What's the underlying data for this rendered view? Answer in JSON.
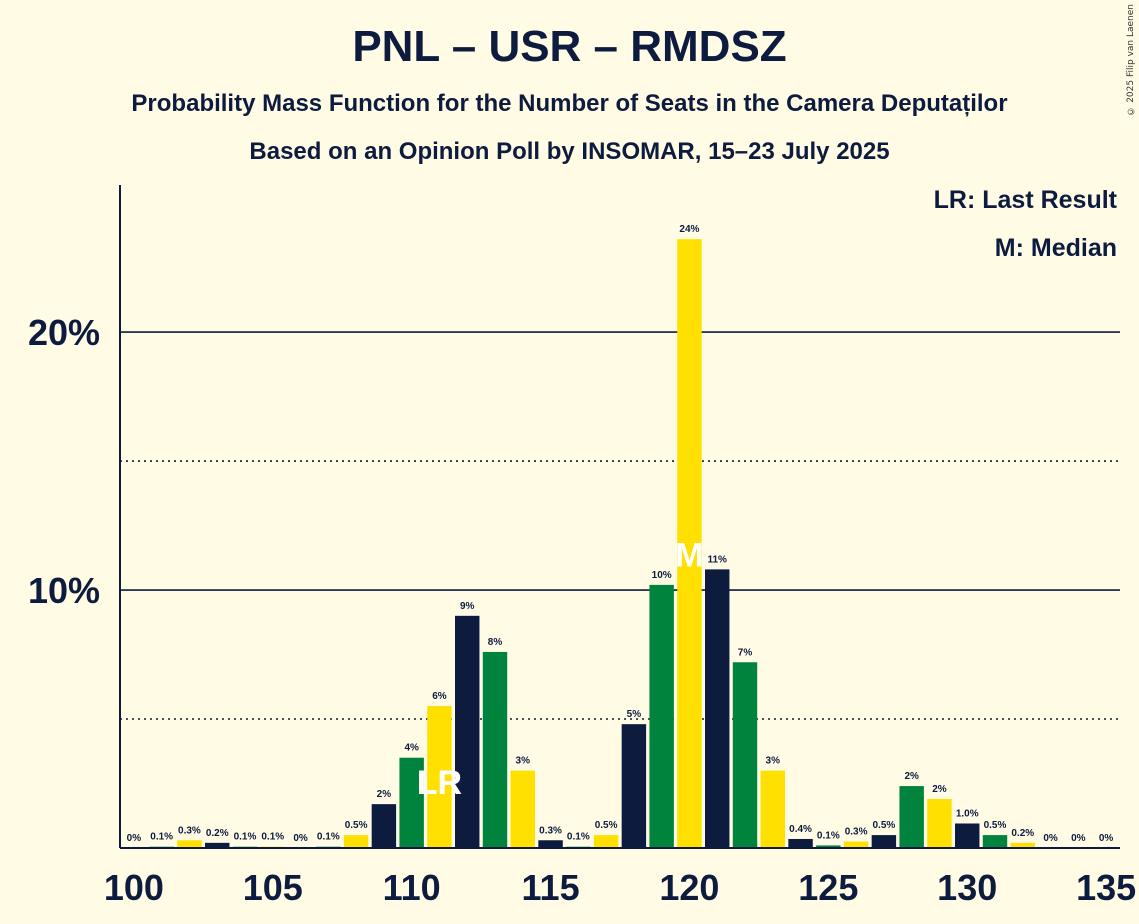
{
  "header": {
    "title": "PNL – USR – RMDSZ",
    "subtitle": "Probability Mass Function for the Number of Seats in the Camera Deputaților",
    "source": "Based on an Opinion Poll by INSOMAR, 15–23 July 2025",
    "copyright": "© 2025 Filip van Laenen"
  },
  "legend": {
    "lr": "LR: Last Result",
    "m": "M: Median"
  },
  "chart_data": {
    "type": "bar",
    "xlabel": "",
    "ylabel": "",
    "x": [
      100,
      101,
      102,
      103,
      104,
      105,
      106,
      107,
      108,
      109,
      110,
      111,
      112,
      113,
      114,
      115,
      116,
      117,
      118,
      119,
      120,
      121,
      122,
      123,
      124,
      125,
      126,
      127,
      128,
      129,
      130,
      131,
      132,
      133,
      134,
      135
    ],
    "values": [
      0.0,
      0.05,
      0.3,
      0.2,
      0.05,
      0.05,
      0.0,
      0.05,
      0.5,
      1.7,
      3.5,
      5.5,
      9.0,
      7.6,
      3.0,
      0.3,
      0.05,
      0.5,
      4.8,
      10.2,
      23.6,
      10.8,
      7.2,
      3.0,
      0.35,
      0.1,
      0.25,
      0.5,
      2.4,
      1.9,
      0.95,
      0.5,
      0.2,
      0.0,
      0.0,
      0.0
    ],
    "labels": [
      "0%",
      "0.1%",
      "0.3%",
      "0.2%",
      "0.1%",
      "0.1%",
      "0%",
      "0.1%",
      "0.5%",
      "2%",
      "4%",
      "6%",
      "9%",
      "8%",
      "3%",
      "0.3%",
      "0.1%",
      "0.5%",
      "5%",
      "10%",
      "24%",
      "11%",
      "7%",
      "3%",
      "0.4%",
      "0.1%",
      "0.3%",
      "0.5%",
      "2%",
      "2%",
      "1.0%",
      "0.5%",
      "0.2%",
      "0%",
      "0%",
      "0%"
    ],
    "x_ticks": [
      100,
      105,
      110,
      115,
      120,
      125,
      130,
      135
    ],
    "x_tick_labels": [
      "100",
      "105",
      "110",
      "115",
      "120",
      "125",
      "130",
      "135"
    ],
    "y_ticks_major": [
      10,
      20
    ],
    "y_tick_labels": [
      "10%",
      "20%"
    ],
    "y_ticks_minor": [
      5,
      15
    ],
    "ylim": [
      0,
      25.7
    ],
    "xlim": [
      99.5,
      135.5
    ],
    "last_result": 111,
    "last_result_label": "LR",
    "median": 120,
    "median_label": "M",
    "colors": [
      "#0d1b3e",
      "#00843D",
      "#FFE000"
    ],
    "legend_position": "top-right"
  }
}
